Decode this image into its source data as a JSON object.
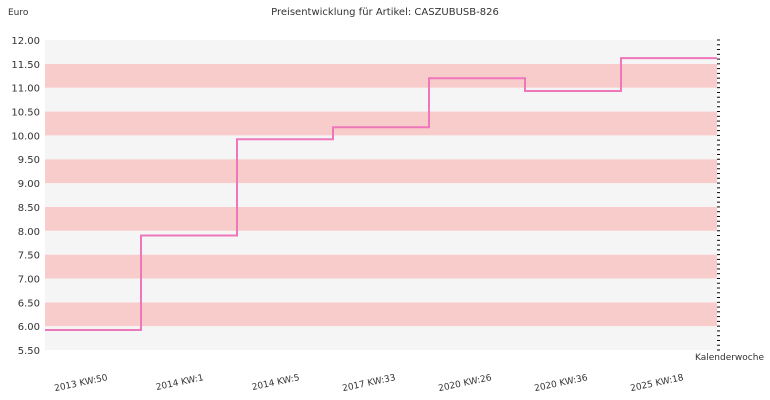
{
  "chart_data": {
    "type": "line",
    "step": true,
    "title": "Preisentwicklung für Artikel: CASZUBUSB-826",
    "ylabel": "Euro",
    "xlabel": "Kalenderwoche",
    "ylim": [
      5.5,
      12.0
    ],
    "yticks": [
      "5.50",
      "6.00",
      "6.50",
      "7.00",
      "7.50",
      "8.00",
      "8.50",
      "9.00",
      "9.50",
      "10.00",
      "10.50",
      "11.00",
      "11.50",
      "12.00"
    ],
    "categories": [
      "2013 KW:50",
      "2014 KW:1",
      "2014 KW:5",
      "2017 KW:33",
      "2020 KW:26",
      "2020 KW:36",
      "2025 KW:18"
    ],
    "values": [
      5.92,
      7.9,
      9.92,
      10.17,
      11.2,
      10.93,
      11.62
    ],
    "band_color": "#f9cccc",
    "alt_band_color": "#f5f5f5",
    "line_color": "#ee77bb",
    "grid": true
  }
}
